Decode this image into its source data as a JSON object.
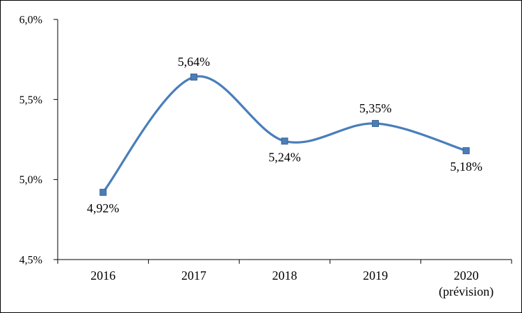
{
  "chart_data": {
    "type": "line",
    "title": "",
    "xlabel": "",
    "ylabel": "",
    "categories": [
      "2016",
      "2017",
      "2018",
      "2019",
      "2020"
    ],
    "category_sublabels": [
      "",
      "",
      "",
      "",
      "(prévision)"
    ],
    "values": [
      4.92,
      5.64,
      5.24,
      5.35,
      5.18
    ],
    "data_labels": [
      "4,92%",
      "5,64%",
      "5,24%",
      "5,35%",
      "5,18%"
    ],
    "label_positions": [
      "below",
      "above",
      "below",
      "above",
      "below"
    ],
    "y_ticks": [
      4.5,
      5.0,
      5.5,
      6.0
    ],
    "y_tick_labels": [
      "4,5%",
      "5,0%",
      "5,5%",
      "6,0%"
    ],
    "ylim": [
      4.5,
      6.0
    ],
    "grid": false,
    "legend": "none",
    "smooth": true,
    "line_color": "#4a7ebb",
    "marker_color": "#4a7ebb",
    "marker_edge_color": "#3a648f",
    "axis_color": "#000000",
    "background_color": "#ffffff"
  }
}
